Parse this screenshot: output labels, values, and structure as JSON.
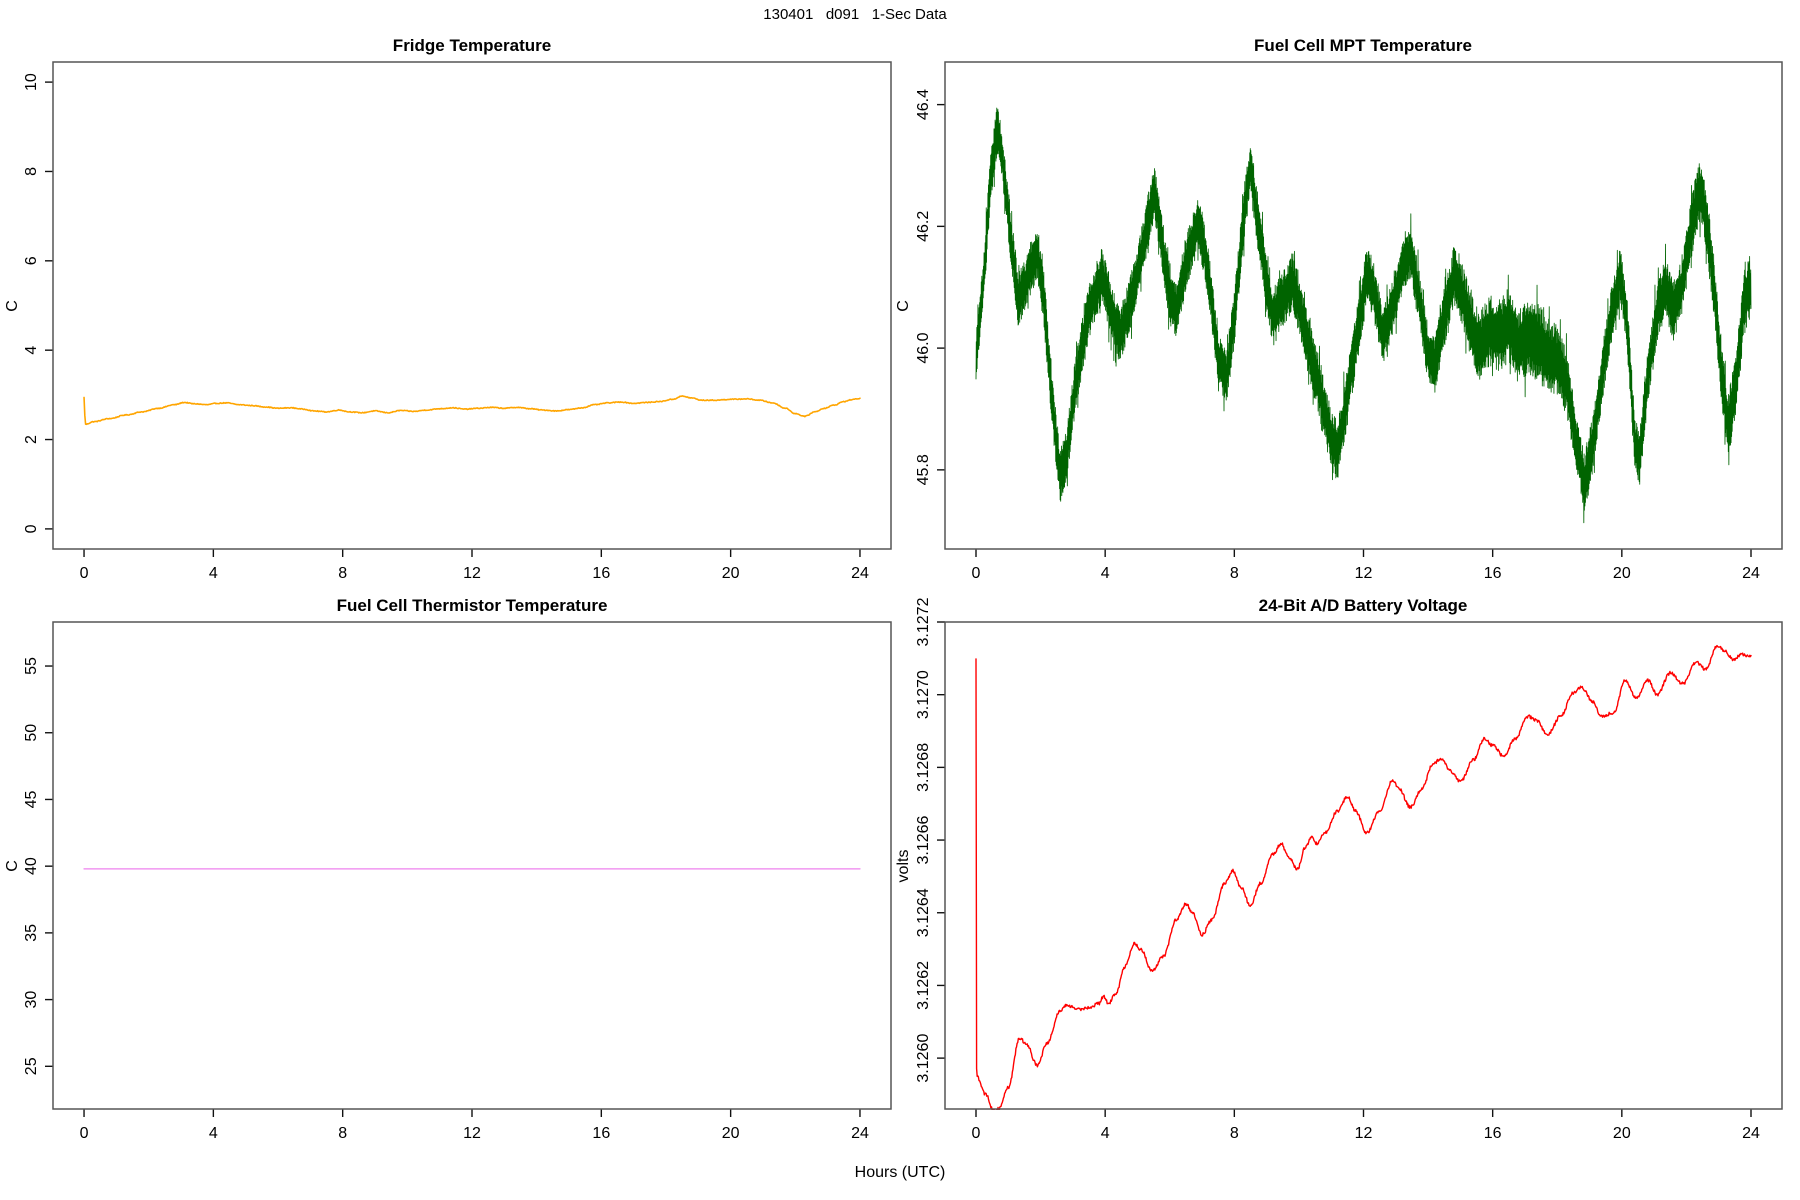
{
  "figure": {
    "title": "130401   d091   1-Sec Data",
    "xlabel": "Hours (UTC)"
  },
  "chart_data": [
    {
      "id": "fridge",
      "type": "line",
      "title": "Fridge Temperature",
      "ylabel": "C",
      "xlabel": "Hours (UTC)",
      "color": "#FFA500",
      "grid": false,
      "legend": null,
      "xlim": [
        -0.96,
        24.96
      ],
      "ylim": [
        -0.45,
        10.45
      ],
      "xticks": {
        "values": [
          0,
          4,
          8,
          12,
          16,
          20,
          24
        ],
        "labels": [
          "0",
          "4",
          "8",
          "12",
          "16",
          "20",
          "24"
        ]
      },
      "yticks": {
        "values": [
          0,
          2,
          4,
          6,
          8,
          10
        ],
        "labels": [
          "0",
          "2",
          "4",
          "6",
          "8",
          "10"
        ]
      },
      "stroke_width": 1.6,
      "samples": 1000,
      "smooth": true,
      "noise": 0.009,
      "alternate": false,
      "keypoints": {
        "h": [
          0,
          0.04,
          0.3,
          0.8,
          1.3,
          1.8,
          2.3,
          2.8,
          3.1,
          3.4,
          3.8,
          4.1,
          4.4,
          4.8,
          5.2,
          5.6,
          6.0,
          6.4,
          6.8,
          7.1,
          7.5,
          7.9,
          8.2,
          8.6,
          9.0,
          9.4,
          9.8,
          10.2,
          10.6,
          11.0,
          11.4,
          11.8,
          12.2,
          12.6,
          13.0,
          13.4,
          13.8,
          14.2,
          14.6,
          15.0,
          15.4,
          15.8,
          16.2,
          16.6,
          17.0,
          17.4,
          17.8,
          18.2,
          18.5,
          18.8,
          19.1,
          19.5,
          20.0,
          20.5,
          20.9,
          21.3,
          21.7,
          22.0,
          22.3,
          22.6,
          22.9,
          23.2,
          23.5,
          23.8,
          24.0
        ],
        "v": [
          2.94,
          2.34,
          2.4,
          2.47,
          2.55,
          2.62,
          2.7,
          2.78,
          2.83,
          2.8,
          2.78,
          2.81,
          2.82,
          2.78,
          2.76,
          2.73,
          2.7,
          2.71,
          2.68,
          2.64,
          2.62,
          2.66,
          2.62,
          2.6,
          2.64,
          2.6,
          2.65,
          2.63,
          2.66,
          2.69,
          2.71,
          2.68,
          2.7,
          2.72,
          2.7,
          2.72,
          2.69,
          2.66,
          2.64,
          2.67,
          2.71,
          2.78,
          2.82,
          2.84,
          2.81,
          2.83,
          2.85,
          2.9,
          2.97,
          2.93,
          2.88,
          2.88,
          2.9,
          2.91,
          2.88,
          2.82,
          2.7,
          2.58,
          2.52,
          2.62,
          2.7,
          2.77,
          2.85,
          2.9,
          2.92
        ]
      }
    },
    {
      "id": "mpt",
      "type": "line",
      "title": "Fuel Cell MPT Temperature",
      "ylabel": "C",
      "xlabel": "Hours (UTC)",
      "color": "#006400",
      "grid": false,
      "legend": null,
      "xlim": [
        -0.96,
        24.96
      ],
      "ylim": [
        45.67,
        46.47
      ],
      "xticks": {
        "values": [
          0,
          4,
          8,
          12,
          16,
          20,
          24
        ],
        "labels": [
          "0",
          "4",
          "8",
          "12",
          "16",
          "20",
          "24"
        ]
      },
      "yticks": {
        "values": [
          45.8,
          46.0,
          46.2,
          46.4
        ],
        "labels": [
          "45.8",
          "46.0",
          "46.2",
          "46.4"
        ]
      },
      "stroke_width": 0.85,
      "samples": 2800,
      "smooth": false,
      "noise": 0,
      "alternate": true,
      "keypoints": {
        "h": [
          0,
          0.25,
          0.45,
          0.65,
          0.8,
          1.0,
          1.3,
          1.5,
          1.9,
          2.1,
          2.35,
          2.6,
          2.8,
          3.1,
          3.5,
          3.9,
          4.2,
          4.45,
          4.7,
          5.0,
          5.3,
          5.5,
          5.7,
          6.0,
          6.2,
          6.5,
          6.9,
          7.2,
          7.5,
          7.75,
          8.0,
          8.3,
          8.5,
          8.7,
          9.0,
          9.2,
          9.5,
          9.8,
          10.1,
          10.4,
          10.7,
          11.0,
          11.2,
          11.5,
          11.8,
          12.1,
          12.3,
          12.6,
          12.9,
          13.2,
          13.45,
          13.7,
          14.0,
          14.2,
          14.5,
          14.8,
          15.0,
          15.3,
          15.6,
          15.9,
          16.2,
          16.5,
          16.8,
          17.1,
          17.4,
          17.7,
          18.0,
          18.3,
          18.6,
          18.85,
          19.1,
          19.4,
          19.7,
          19.95,
          20.15,
          20.4,
          20.55,
          20.8,
          21.1,
          21.35,
          21.6,
          21.85,
          22.1,
          22.4,
          22.6,
          22.85,
          23.1,
          23.3,
          23.55,
          23.8,
          24.0
        ],
        "v": [
          45.98,
          46.12,
          46.28,
          46.36,
          46.32,
          46.22,
          46.08,
          46.1,
          46.16,
          46.08,
          45.92,
          45.79,
          45.82,
          45.95,
          46.06,
          46.12,
          46.06,
          46.02,
          46.06,
          46.12,
          46.2,
          46.26,
          46.2,
          46.08,
          46.06,
          46.14,
          46.21,
          46.12,
          45.98,
          45.95,
          46.05,
          46.22,
          46.3,
          46.22,
          46.1,
          46.05,
          46.08,
          46.11,
          46.05,
          45.98,
          45.92,
          45.85,
          45.83,
          45.92,
          46.02,
          46.12,
          46.1,
          46.02,
          46.07,
          46.13,
          46.16,
          46.09,
          45.99,
          45.97,
          46.05,
          46.12,
          46.1,
          46.04,
          46.0,
          46.03,
          46.02,
          46.04,
          46.0,
          46.02,
          46.01,
          45.99,
          45.98,
          45.94,
          45.84,
          45.78,
          45.84,
          45.96,
          46.06,
          46.12,
          46.05,
          45.84,
          45.82,
          45.95,
          46.06,
          46.1,
          46.06,
          46.1,
          46.18,
          46.26,
          46.22,
          46.1,
          45.95,
          45.87,
          45.95,
          46.08,
          46.1
        ]
      },
      "noise_keys": {
        "h": [
          0,
          2,
          5,
          8,
          11,
          14,
          16,
          17.5,
          18.5,
          20,
          22,
          24
        ],
        "amp": [
          0.04,
          0.045,
          0.045,
          0.045,
          0.05,
          0.045,
          0.06,
          0.065,
          0.05,
          0.045,
          0.05,
          0.055
        ]
      }
    },
    {
      "id": "thermistor",
      "type": "line",
      "title": "Fuel Cell Thermistor Temperature",
      "ylabel": "C",
      "xlabel": "Hours (UTC)",
      "color": "#EE82EE",
      "grid": false,
      "legend": null,
      "xlim": [
        -0.96,
        24.96
      ],
      "ylim": [
        21.8,
        58.3
      ],
      "xticks": {
        "values": [
          0,
          4,
          8,
          12,
          16,
          20,
          24
        ],
        "labels": [
          "0",
          "4",
          "8",
          "12",
          "16",
          "20",
          "24"
        ]
      },
      "yticks": {
        "values": [
          25,
          30,
          35,
          40,
          45,
          50,
          55
        ],
        "labels": [
          "25",
          "30",
          "35",
          "40",
          "45",
          "50",
          "55"
        ]
      },
      "stroke_width": 1.3,
      "samples": 2,
      "smooth": false,
      "noise": 0,
      "alternate": false,
      "keypoints": {
        "h": [
          0,
          24
        ],
        "v": [
          39.8,
          39.8
        ]
      }
    },
    {
      "id": "battery",
      "type": "line",
      "title": "24-Bit A/D Battery Voltage",
      "ylabel": "volts",
      "xlabel": "Hours (UTC)",
      "color": "#FF0000",
      "grid": false,
      "legend": null,
      "xlim": [
        -0.96,
        24.96
      ],
      "ylim": [
        3.12586,
        3.1272
      ],
      "xticks": {
        "values": [
          0,
          4,
          8,
          12,
          16,
          20,
          24
        ],
        "labels": [
          "0",
          "4",
          "8",
          "12",
          "16",
          "20",
          "24"
        ]
      },
      "yticks": {
        "values": [
          3.126,
          3.1262,
          3.1264,
          3.1266,
          3.1268,
          3.127,
          3.1272
        ],
        "labels": [
          "3.1260",
          "3.1262",
          "3.1264",
          "3.1266",
          "3.1268",
          "3.1270",
          "3.1272"
        ]
      },
      "stroke_width": 1.4,
      "samples": 1300,
      "smooth": true,
      "noise": 4.5e-06,
      "alternate": false,
      "keypoints": {
        "h": [
          0,
          0.02,
          0.3,
          0.55,
          0.7,
          1.0,
          1.35,
          1.55,
          1.9,
          2.2,
          2.6,
          2.8,
          3.0,
          3.2,
          3.5,
          3.8,
          3.95,
          4.1,
          4.35,
          4.6,
          4.9,
          5.1,
          5.45,
          5.8,
          6.2,
          6.5,
          6.7,
          7.0,
          7.3,
          7.7,
          7.95,
          8.2,
          8.5,
          8.8,
          9.2,
          9.45,
          9.7,
          9.95,
          10.2,
          10.4,
          10.55,
          10.8,
          11.2,
          11.5,
          11.75,
          12.1,
          12.5,
          12.9,
          13.1,
          13.45,
          13.8,
          14.15,
          14.4,
          14.7,
          15.0,
          15.4,
          15.75,
          16.0,
          16.35,
          16.7,
          17.1,
          17.35,
          17.7,
          18.1,
          18.5,
          18.75,
          19.1,
          19.35,
          19.75,
          20.1,
          20.45,
          20.8,
          21.1,
          21.5,
          21.9,
          22.3,
          22.6,
          22.95,
          23.2,
          23.45,
          23.7,
          24.0
        ],
        "v": [
          3.1271,
          3.12595,
          3.1259,
          3.125855,
          3.12586,
          3.12592,
          3.126055,
          3.12604,
          3.12598,
          3.12604,
          3.12613,
          3.126145,
          3.12614,
          3.126135,
          3.12614,
          3.12615,
          3.12617,
          3.12615,
          3.12618,
          3.12625,
          3.126315,
          3.1263,
          3.12624,
          3.12628,
          3.12638,
          3.126425,
          3.1264,
          3.12634,
          3.12638,
          3.12648,
          3.126515,
          3.12647,
          3.12642,
          3.12648,
          3.12656,
          3.12659,
          3.12655,
          3.12652,
          3.12658,
          3.12661,
          3.12659,
          3.12662,
          3.12668,
          3.12672,
          3.12668,
          3.12662,
          3.12668,
          3.126765,
          3.12674,
          3.12669,
          3.12674,
          3.12681,
          3.126825,
          3.12679,
          3.12676,
          3.12682,
          3.12688,
          3.12686,
          3.12683,
          3.12688,
          3.12694,
          3.12693,
          3.12689,
          3.12694,
          3.127005,
          3.12702,
          3.12698,
          3.12694,
          3.12695,
          3.12704,
          3.12699,
          3.12704,
          3.127,
          3.12706,
          3.12703,
          3.12709,
          3.12707,
          3.127135,
          3.12712,
          3.127095,
          3.12711,
          3.127105
        ]
      }
    }
  ]
}
